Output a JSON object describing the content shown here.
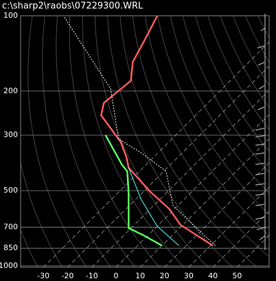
{
  "chart_data": {
    "type": "skewt",
    "title": "c:\\sharp2\\raobs\\07229300.WRL",
    "ylog": true,
    "ylim": [
      1013,
      100
    ],
    "yticks": [
      100,
      200,
      300,
      500,
      700,
      850,
      1000
    ],
    "xlim": [
      -39.4,
      63.2
    ],
    "xticks": [
      -30,
      -20,
      -10,
      0,
      10,
      20,
      30,
      40,
      50
    ],
    "grid": true,
    "series": [
      {
        "color": "#ff5a5a",
        "pressure": [
          830,
          685,
          593,
          506,
          405,
          369,
          319,
          250,
          223,
          182,
          153,
          126,
          100
        ],
        "values": [
          31,
          9,
          -2,
          -17,
          -36,
          -41,
          -50,
          -69,
          -73,
          -71,
          -78,
          -82,
          -87
        ]
      },
      {
        "color": "#5aff5a",
        "pressure": [
          830,
          754,
          706,
          506,
          419,
          394,
          300
        ],
        "values": [
          10,
          -2,
          -11,
          -26,
          -35,
          -40,
          -59
        ]
      },
      {
        "color": "#5affff",
        "pressure": [
          830,
          694,
          540,
          405
        ],
        "values": [
          17,
          0,
          -18,
          -36
        ]
      },
      {
        "color": "#ffffff",
        "dashed": true,
        "pressure": [
          830,
          574,
          419,
          353,
          311,
          196,
          101
        ],
        "values": [
          32,
          -2,
          -19,
          -37,
          -52,
          -76,
          -125
        ]
      }
    ]
  }
}
